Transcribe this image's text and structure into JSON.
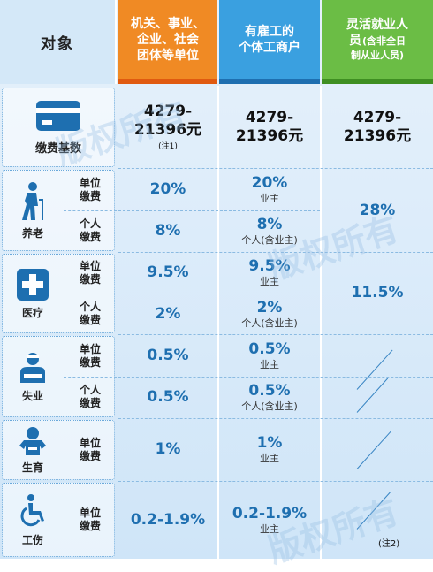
{
  "header": {
    "object": "对象",
    "col1": [
      "机关、事业、",
      "企业、社会",
      "团体等单位"
    ],
    "col2": [
      "有雇工的",
      "个体工商户"
    ],
    "col3": [
      "灵活就业人",
      "员",
      "(含非全日",
      "制从业人员)"
    ]
  },
  "base": {
    "label": "缴费基数",
    "col1": [
      "4279-",
      "21396元"
    ],
    "col1_note": "(注1)",
    "col2": [
      "4279-",
      "21396元"
    ],
    "col3": [
      "4279-",
      "21396元"
    ]
  },
  "pension": {
    "label": "养老",
    "unit_label": [
      "单位",
      "缴费"
    ],
    "person_label": [
      "个人",
      "缴费"
    ],
    "unit_col1": "20%",
    "unit_col2": "20%",
    "unit_col2_sub": "业主",
    "person_col1": "8%",
    "person_col2": "8%",
    "person_col2_sub": "个人(含业主)",
    "col3": "28%"
  },
  "medical": {
    "label": "医疗",
    "unit_label": [
      "单位",
      "缴费"
    ],
    "person_label": [
      "个人",
      "缴费"
    ],
    "unit_col1": "9.5%",
    "unit_col2": "9.5%",
    "unit_col2_sub": "业主",
    "person_col1": "2%",
    "person_col2": "2%",
    "person_col2_sub": "个人(含业主)",
    "col3": "11.5%"
  },
  "unemployment": {
    "label": "失业",
    "unit_label": [
      "单位",
      "缴费"
    ],
    "person_label": [
      "个人",
      "缴费"
    ],
    "unit_col1": "0.5%",
    "unit_col2": "0.5%",
    "unit_col2_sub": "业主",
    "person_col1": "0.5%",
    "person_col2": "0.5%",
    "person_col2_sub": "个人(含业主)"
  },
  "maternity": {
    "label": "生育",
    "unit_label": [
      "单位",
      "缴费"
    ],
    "unit_col1": "1%",
    "unit_col2": "1%",
    "unit_col2_sub": "业主"
  },
  "injury": {
    "label": "工伤",
    "unit_label": [
      "单位",
      "缴费"
    ],
    "unit_col1": "0.2-1.9%",
    "unit_col2": "0.2-1.9%",
    "unit_col2_sub": "业主",
    "col3_note": "(注2)"
  },
  "watermarks": [
    "版权所有",
    "版权所有",
    "版权所有"
  ],
  "colors": {
    "orange": "#f08a24",
    "blue": "#3aa0e0",
    "green": "#6bbd45",
    "icon_blue": "#1e6fb0"
  },
  "icons": [
    "card-icon",
    "elderly-walking-icon",
    "medical-cross-icon",
    "unemployed-worker-icon",
    "baby-icon",
    "wheelchair-icon"
  ]
}
